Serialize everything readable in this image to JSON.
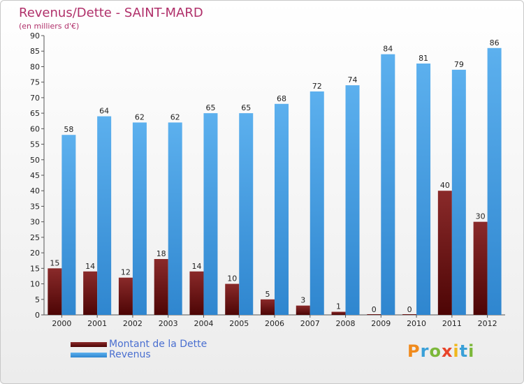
{
  "header": {
    "title": "Revenus/Dette - SAINT-MARD",
    "subtitle": "(en milliers d'€)"
  },
  "legend": [
    {
      "label": "Montant de la Dette",
      "color": "#6b0f0f"
    },
    {
      "label": "Revenus",
      "color": "#4a9fe0"
    }
  ],
  "logo": {
    "text": "Proxiti"
  },
  "chart_data": {
    "type": "bar",
    "categories": [
      "2000",
      "2001",
      "2002",
      "2003",
      "2004",
      "2005",
      "2006",
      "2007",
      "2008",
      "2009",
      "2010",
      "2011",
      "2012"
    ],
    "series": [
      {
        "name": "Montant de la Dette",
        "color": "#6b0f0f",
        "values": [
          15,
          14,
          12,
          18,
          14,
          10,
          5,
          3,
          1,
          0,
          0,
          40,
          30
        ]
      },
      {
        "name": "Revenus",
        "color": "#4a9fe0",
        "values": [
          58,
          64,
          62,
          62,
          65,
          65,
          68,
          72,
          74,
          84,
          81,
          79,
          86
        ]
      }
    ],
    "ylim": [
      0,
      90
    ],
    "yticks": [
      0,
      5,
      10,
      15,
      20,
      25,
      30,
      35,
      40,
      45,
      50,
      55,
      60,
      65,
      70,
      75,
      80,
      85,
      90
    ],
    "grid": false,
    "legend_position": "bottom-left"
  }
}
